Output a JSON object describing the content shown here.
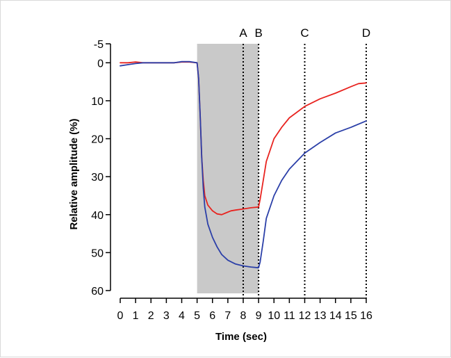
{
  "chart_data": {
    "type": "line",
    "xlabel": "Time (sec)",
    "ylabel": "Relative amplitude (%)",
    "xlim": [
      0,
      16
    ],
    "ylim": [
      -5,
      60
    ],
    "y_reversed": true,
    "x_ticks": [
      "0",
      "1",
      "2",
      "3",
      "4",
      "5",
      "6",
      "7",
      "8",
      "9",
      "10",
      "11",
      "12",
      "13",
      "14",
      "15",
      "16"
    ],
    "y_ticks": [
      "-5",
      "0",
      "10",
      "20",
      "30",
      "40",
      "50",
      "60"
    ],
    "shaded_interval": [
      5,
      9
    ],
    "shaded_color": "#c9c9c9",
    "markers": [
      {
        "label": "A",
        "x": 8
      },
      {
        "label": "B",
        "x": 9
      },
      {
        "label": "C",
        "x": 12
      },
      {
        "label": "D",
        "x": 16
      }
    ],
    "series": [
      {
        "color": "#e8231f",
        "x": [
          0,
          0.5,
          1,
          1.5,
          2,
          2.5,
          3,
          3.5,
          4,
          4.5,
          5,
          5.1,
          5.2,
          5.3,
          5.4,
          5.5,
          5.7,
          6,
          6.3,
          6.6,
          6.9,
          7.2,
          7.5,
          8,
          8.5,
          9,
          9.1,
          9.3,
          9.5,
          10,
          10.5,
          11,
          12,
          13,
          14,
          15,
          15.5,
          16
        ],
        "values": [
          0,
          0,
          -0.2,
          0,
          0,
          0,
          0,
          0,
          -0.2,
          -0.2,
          0,
          4,
          14,
          25,
          31,
          35,
          37.5,
          39,
          39.8,
          40,
          39.5,
          39,
          38.8,
          38.5,
          38.2,
          38,
          36,
          31,
          26,
          20,
          17,
          14.5,
          11.5,
          9.5,
          8,
          6.3,
          5.5,
          5.3
        ]
      },
      {
        "color": "#2b3fa8",
        "x": [
          0,
          0.5,
          1,
          1.5,
          2,
          2.5,
          3,
          3.5,
          4,
          4.5,
          5,
          5.1,
          5.2,
          5.3,
          5.4,
          5.5,
          5.7,
          6,
          6.3,
          6.6,
          7,
          7.5,
          8,
          8.5,
          9,
          9.1,
          9.3,
          9.5,
          10,
          10.5,
          11,
          12,
          13,
          14,
          15,
          16
        ],
        "values": [
          0.8,
          0.5,
          0.2,
          0,
          0,
          0,
          0,
          0,
          -0.3,
          -0.3,
          0,
          4,
          14,
          25,
          33,
          38,
          42.5,
          46,
          48.5,
          50.5,
          52,
          53,
          53.5,
          53.8,
          54,
          52.5,
          47,
          41,
          35,
          31,
          28,
          23.8,
          21,
          18.5,
          17,
          15.3
        ]
      }
    ]
  }
}
